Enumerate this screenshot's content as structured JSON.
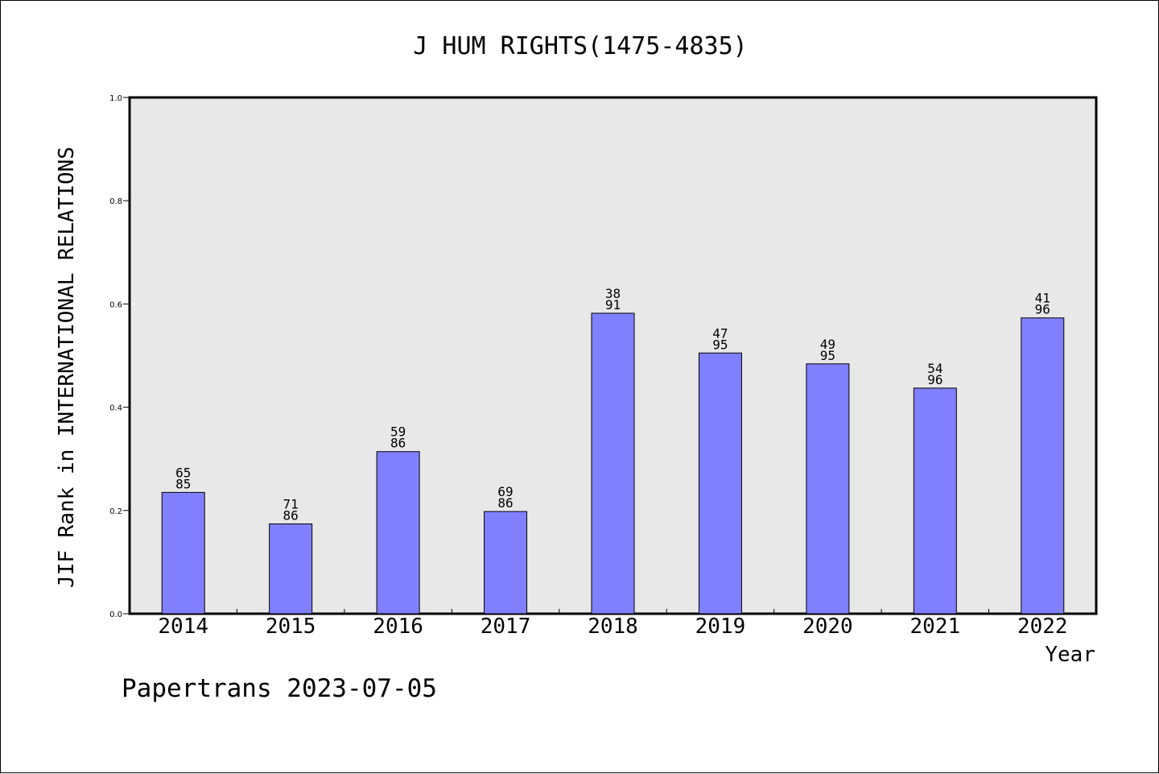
{
  "chart_data": {
    "type": "bar",
    "title": "J HUM RIGHTS(1475-4835)",
    "xlabel": "Year",
    "ylabel": "JIF Rank in INTERNATIONAL RELATIONS",
    "ylim": [
      0,
      1
    ],
    "yticks": [
      "0.0",
      "0.2",
      "0.4",
      "0.6",
      "0.8",
      "1.0"
    ],
    "categories": [
      "2014",
      "2015",
      "2016",
      "2017",
      "2018",
      "2019",
      "2020",
      "2021",
      "2022"
    ],
    "values": [
      0.235,
      0.174,
      0.314,
      0.198,
      0.582,
      0.505,
      0.484,
      0.437,
      0.573
    ],
    "rank": [
      "65",
      "71",
      "59",
      "69",
      "38",
      "47",
      "49",
      "54",
      "41"
    ],
    "total": [
      "85",
      "86",
      "86",
      "86",
      "91",
      "95",
      "95",
      "96",
      "96"
    ],
    "grid": false,
    "colors": {
      "bar": "#8080ff",
      "plot_bg": "#e8e8e8",
      "axis": "#000000"
    }
  },
  "footer": "Papertrans 2023-07-05"
}
